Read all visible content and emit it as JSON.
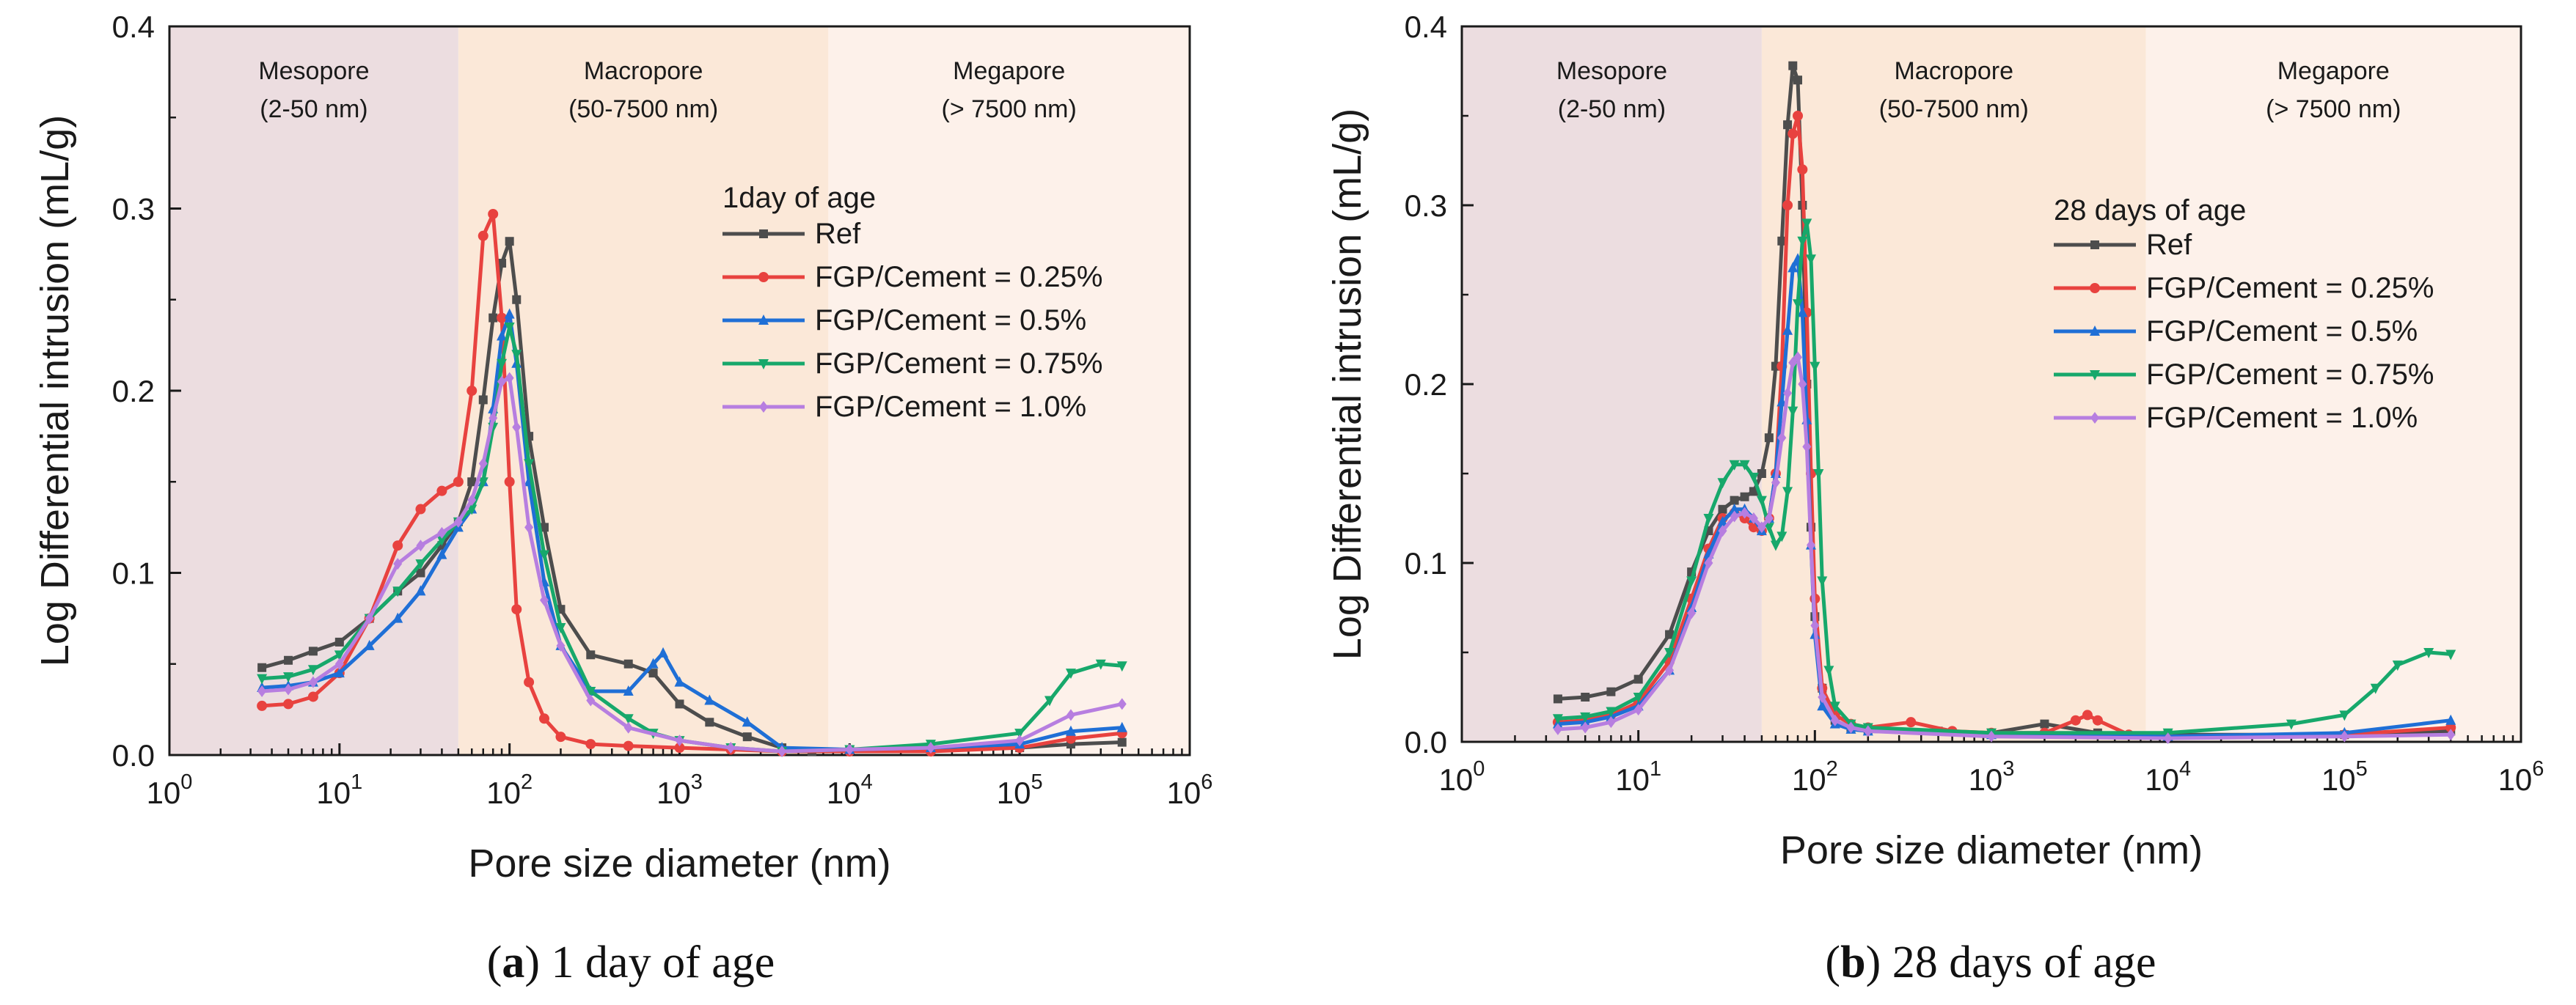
{
  "chart_data": [
    {
      "type": "line",
      "panel_label": "a",
      "caption": "1 day of age",
      "legend_title": "1day of age",
      "xlabel": "Pore size diameter (nm)",
      "ylabel": "Log Differential intrusion (mL/g)",
      "xscale": "log",
      "xlim": [
        1,
        1000000
      ],
      "ylim": [
        0,
        0.4
      ],
      "yticks": [
        "0.0",
        "0.1",
        "0.2",
        "0.3",
        "0.4"
      ],
      "xticks": [
        {
          "base": "10",
          "exp": "0"
        },
        {
          "base": "10",
          "exp": "1"
        },
        {
          "base": "10",
          "exp": "2"
        },
        {
          "base": "10",
          "exp": "3"
        },
        {
          "base": "10",
          "exp": "4"
        },
        {
          "base": "10",
          "exp": "5"
        },
        {
          "base": "10",
          "exp": "6"
        }
      ],
      "regions": [
        {
          "name": "Mesopore",
          "range": "(2-50 nm)",
          "from": 1,
          "to": 50,
          "color": "#ecdde0"
        },
        {
          "name": "Macropore",
          "range": "(50-7500 nm)",
          "from": 50,
          "to": 7500,
          "color": "#fbe8d8"
        },
        {
          "name": "Megapore",
          "range": "(> 7500 nm)",
          "from": 7500,
          "to": 1000000,
          "color": "#fdf1ea"
        }
      ],
      "series": [
        {
          "name": "Ref",
          "color": "#4d4d4d",
          "marker": "square",
          "x": [
            3.5,
            5,
            7,
            10,
            15,
            22,
            30,
            40,
            50,
            60,
            70,
            80,
            90,
            100,
            110,
            130,
            160,
            200,
            300,
            500,
            700,
            1000,
            1500,
            2500,
            4000,
            6000,
            10000,
            30000,
            100000,
            200000,
            400000
          ],
          "y": [
            0.048,
            0.052,
            0.057,
            0.062,
            0.075,
            0.09,
            0.1,
            0.115,
            0.128,
            0.15,
            0.195,
            0.24,
            0.27,
            0.282,
            0.25,
            0.175,
            0.125,
            0.08,
            0.055,
            0.05,
            0.045,
            0.028,
            0.018,
            0.01,
            0.004,
            0.002,
            0.003,
            0.004,
            0.004,
            0.006,
            0.007
          ]
        },
        {
          "name": "FGP/Cement = 0.25%",
          "color": "#e8423f",
          "marker": "circle",
          "x": [
            3.5,
            5,
            7,
            10,
            15,
            22,
            30,
            40,
            50,
            60,
            70,
            80,
            90,
            100,
            110,
            130,
            160,
            200,
            300,
            500,
            1000,
            2000,
            4000,
            10000,
            30000,
            100000,
            200000,
            400000
          ],
          "y": [
            0.027,
            0.028,
            0.032,
            0.045,
            0.075,
            0.115,
            0.135,
            0.145,
            0.15,
            0.2,
            0.285,
            0.297,
            0.24,
            0.15,
            0.08,
            0.04,
            0.02,
            0.01,
            0.006,
            0.005,
            0.004,
            0.003,
            0.002,
            0.002,
            0.002,
            0.004,
            0.009,
            0.012
          ]
        },
        {
          "name": "FGP/Cement = 0.5%",
          "color": "#1f6fd6",
          "marker": "triangle-up",
          "x": [
            3.5,
            5,
            7,
            10,
            15,
            22,
            30,
            40,
            50,
            60,
            70,
            80,
            90,
            100,
            110,
            130,
            160,
            200,
            300,
            500,
            700,
            800,
            1000,
            1500,
            2500,
            4000,
            10000,
            30000,
            100000,
            200000,
            400000
          ],
          "y": [
            0.037,
            0.038,
            0.04,
            0.045,
            0.06,
            0.075,
            0.09,
            0.11,
            0.125,
            0.135,
            0.15,
            0.19,
            0.23,
            0.242,
            0.215,
            0.15,
            0.095,
            0.06,
            0.035,
            0.035,
            0.05,
            0.056,
            0.04,
            0.03,
            0.018,
            0.004,
            0.003,
            0.004,
            0.006,
            0.013,
            0.015
          ]
        },
        {
          "name": "FGP/Cement = 0.75%",
          "color": "#17a86b",
          "marker": "triangle-down",
          "x": [
            3.5,
            5,
            7,
            10,
            15,
            22,
            30,
            40,
            50,
            60,
            70,
            80,
            90,
            100,
            110,
            130,
            160,
            200,
            300,
            500,
            700,
            1000,
            2000,
            4000,
            10000,
            30000,
            100000,
            150000,
            200000,
            300000,
            400000
          ],
          "y": [
            0.042,
            0.043,
            0.047,
            0.055,
            0.075,
            0.09,
            0.105,
            0.118,
            0.128,
            0.135,
            0.15,
            0.18,
            0.215,
            0.235,
            0.22,
            0.16,
            0.11,
            0.07,
            0.035,
            0.02,
            0.012,
            0.008,
            0.004,
            0.002,
            0.003,
            0.006,
            0.012,
            0.03,
            0.045,
            0.05,
            0.049
          ]
        },
        {
          "name": "FGP/Cement = 1.0%",
          "color": "#b77ee0",
          "marker": "diamond",
          "x": [
            3.5,
            5,
            7,
            10,
            15,
            22,
            30,
            40,
            50,
            60,
            70,
            80,
            90,
            100,
            110,
            130,
            160,
            200,
            300,
            500,
            1000,
            2000,
            4000,
            10000,
            30000,
            100000,
            200000,
            400000
          ],
          "y": [
            0.035,
            0.036,
            0.04,
            0.05,
            0.075,
            0.105,
            0.115,
            0.122,
            0.128,
            0.14,
            0.16,
            0.185,
            0.205,
            0.207,
            0.18,
            0.125,
            0.085,
            0.06,
            0.03,
            0.015,
            0.008,
            0.004,
            0.002,
            0.003,
            0.004,
            0.008,
            0.022,
            0.028
          ]
        }
      ]
    },
    {
      "type": "line",
      "panel_label": "b",
      "caption": "28 days of age",
      "legend_title": "28 days of age",
      "xlabel": "Pore size diameter (nm)",
      "ylabel": "Log Differential intrusion (mL/g)",
      "xscale": "log",
      "xlim": [
        1,
        1000000
      ],
      "ylim": [
        0,
        0.4
      ],
      "yticks": [
        "0.0",
        "0.1",
        "0.2",
        "0.3",
        "0.4"
      ],
      "xticks": [
        {
          "base": "10",
          "exp": "0"
        },
        {
          "base": "10",
          "exp": "1"
        },
        {
          "base": "10",
          "exp": "2"
        },
        {
          "base": "10",
          "exp": "3"
        },
        {
          "base": "10",
          "exp": "4"
        },
        {
          "base": "10",
          "exp": "5"
        },
        {
          "base": "10",
          "exp": "6"
        }
      ],
      "regions": [
        {
          "name": "Mesopore",
          "range": "(2-50 nm)",
          "from": 1,
          "to": 50,
          "color": "#ecdde0"
        },
        {
          "name": "Macropore",
          "range": "(50-7500 nm)",
          "from": 50,
          "to": 7500,
          "color": "#fbe8d8"
        },
        {
          "name": "Megapore",
          "range": "(> 7500 nm)",
          "from": 7500,
          "to": 1000000,
          "color": "#fdf1ea"
        }
      ],
      "series": [
        {
          "name": "Ref",
          "color": "#4d4d4d",
          "marker": "square",
          "x": [
            3.5,
            5,
            7,
            10,
            15,
            20,
            25,
            30,
            35,
            40,
            45,
            50,
            55,
            60,
            65,
            70,
            75,
            80,
            85,
            90,
            95,
            100,
            110,
            130,
            160,
            200,
            500,
            1000,
            2000,
            4000,
            10000,
            100000,
            400000
          ],
          "y": [
            0.024,
            0.025,
            0.028,
            0.035,
            0.06,
            0.095,
            0.118,
            0.13,
            0.135,
            0.137,
            0.14,
            0.15,
            0.17,
            0.21,
            0.28,
            0.345,
            0.378,
            0.37,
            0.3,
            0.2,
            0.12,
            0.07,
            0.03,
            0.012,
            0.008,
            0.007,
            0.006,
            0.005,
            0.01,
            0.005,
            0.004,
            0.004,
            0.006
          ]
        },
        {
          "name": "FGP/Cement = 0.25%",
          "color": "#e8423f",
          "marker": "circle",
          "x": [
            3.5,
            5,
            7,
            10,
            15,
            20,
            25,
            30,
            35,
            40,
            45,
            50,
            55,
            60,
            65,
            70,
            75,
            80,
            85,
            90,
            95,
            100,
            110,
            130,
            160,
            200,
            350,
            600,
            1000,
            2000,
            3000,
            3500,
            4000,
            6000,
            10000,
            100000,
            400000
          ],
          "y": [
            0.011,
            0.012,
            0.015,
            0.022,
            0.045,
            0.08,
            0.108,
            0.125,
            0.128,
            0.125,
            0.12,
            0.118,
            0.125,
            0.15,
            0.21,
            0.3,
            0.34,
            0.35,
            0.32,
            0.24,
            0.15,
            0.08,
            0.03,
            0.015,
            0.01,
            0.008,
            0.011,
            0.006,
            0.005,
            0.005,
            0.012,
            0.015,
            0.012,
            0.004,
            0.003,
            0.004,
            0.008
          ]
        },
        {
          "name": "FGP/Cement = 0.5%",
          "color": "#1f6fd6",
          "marker": "triangle-up",
          "x": [
            3.5,
            5,
            7,
            10,
            15,
            20,
            25,
            30,
            35,
            40,
            45,
            50,
            55,
            60,
            65,
            70,
            75,
            80,
            85,
            90,
            95,
            100,
            110,
            130,
            160,
            200,
            1000,
            10000,
            100000,
            400000
          ],
          "y": [
            0.01,
            0.011,
            0.014,
            0.02,
            0.04,
            0.075,
            0.105,
            0.123,
            0.13,
            0.13,
            0.125,
            0.118,
            0.125,
            0.15,
            0.19,
            0.23,
            0.265,
            0.27,
            0.24,
            0.18,
            0.11,
            0.06,
            0.02,
            0.01,
            0.007,
            0.006,
            0.004,
            0.003,
            0.005,
            0.012
          ]
        },
        {
          "name": "FGP/Cement = 0.75%",
          "color": "#17a86b",
          "marker": "triangle-down",
          "x": [
            3.5,
            5,
            7,
            10,
            15,
            20,
            25,
            30,
            35,
            40,
            45,
            50,
            55,
            60,
            65,
            70,
            75,
            80,
            85,
            90,
            95,
            100,
            105,
            110,
            120,
            130,
            160,
            200,
            1000,
            10000,
            50000,
            100000,
            150000,
            200000,
            300000,
            400000
          ],
          "y": [
            0.013,
            0.014,
            0.017,
            0.025,
            0.05,
            0.09,
            0.125,
            0.145,
            0.155,
            0.155,
            0.148,
            0.135,
            0.12,
            0.11,
            0.115,
            0.14,
            0.185,
            0.245,
            0.28,
            0.29,
            0.27,
            0.21,
            0.15,
            0.09,
            0.04,
            0.02,
            0.01,
            0.008,
            0.005,
            0.005,
            0.01,
            0.015,
            0.03,
            0.043,
            0.05,
            0.049
          ]
        },
        {
          "name": "FGP/Cement = 1.0%",
          "color": "#b77ee0",
          "marker": "diamond",
          "x": [
            3.5,
            5,
            7,
            10,
            15,
            20,
            25,
            30,
            35,
            40,
            45,
            50,
            55,
            60,
            65,
            70,
            75,
            80,
            85,
            90,
            95,
            100,
            110,
            130,
            160,
            200,
            1000,
            10000,
            100000,
            400000
          ],
          "y": [
            0.007,
            0.008,
            0.011,
            0.018,
            0.04,
            0.072,
            0.1,
            0.118,
            0.126,
            0.128,
            0.125,
            0.12,
            0.125,
            0.145,
            0.17,
            0.195,
            0.212,
            0.215,
            0.2,
            0.165,
            0.11,
            0.065,
            0.025,
            0.012,
            0.008,
            0.006,
            0.003,
            0.002,
            0.003,
            0.004
          ]
        }
      ]
    }
  ]
}
